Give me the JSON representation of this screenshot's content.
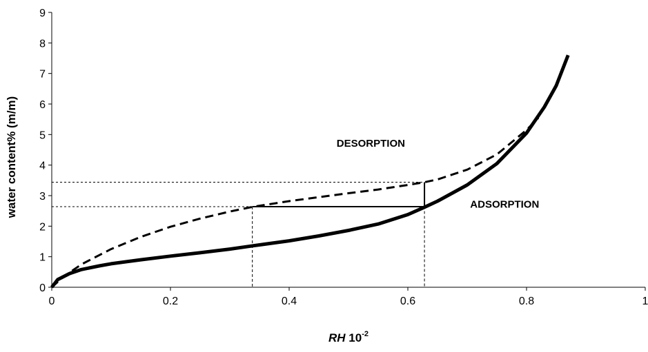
{
  "chart_data": {
    "type": "line",
    "xlabel_main": "RH",
    "xlabel_tail": " 10",
    "xlabel_sup": "-2",
    "ylabel": "water content% (m/m)",
    "xlim": [
      0,
      1
    ],
    "ylim": [
      0,
      9
    ],
    "x_ticks": [
      0,
      0.2,
      0.4,
      0.6,
      0.8,
      1
    ],
    "x_tick_labels": [
      "0",
      "0.2",
      "0.4",
      "0.6",
      "0.8",
      "1"
    ],
    "y_ticks": [
      0,
      1,
      2,
      3,
      4,
      5,
      6,
      7,
      8,
      9
    ],
    "y_tick_labels": [
      "0",
      "1",
      "2",
      "3",
      "4",
      "5",
      "6",
      "7",
      "8",
      "9"
    ],
    "grid": false,
    "series": [
      {
        "name": "ADSORPTION",
        "style": "solid-thick",
        "x": [
          0,
          0.01,
          0.03,
          0.05,
          0.08,
          0.1,
          0.15,
          0.2,
          0.25,
          0.3,
          0.34,
          0.4,
          0.45,
          0.5,
          0.55,
          0.6,
          0.628,
          0.65,
          0.7,
          0.75,
          0.8,
          0.83,
          0.85,
          0.87
        ],
        "y": [
          0,
          0.25,
          0.45,
          0.58,
          0.7,
          0.77,
          0.9,
          1.02,
          1.13,
          1.25,
          1.36,
          1.52,
          1.68,
          1.86,
          2.07,
          2.38,
          2.62,
          2.82,
          3.35,
          4.05,
          5.05,
          5.9,
          6.6,
          7.6
        ]
      },
      {
        "name": "DESORPTION",
        "style": "dashed",
        "x": [
          0,
          0.02,
          0.05,
          0.08,
          0.1,
          0.15,
          0.2,
          0.25,
          0.3,
          0.34,
          0.4,
          0.45,
          0.5,
          0.55,
          0.6,
          0.628,
          0.65,
          0.7,
          0.75,
          0.8,
          0.82
        ],
        "y": [
          0,
          0.35,
          0.75,
          1.05,
          1.25,
          1.65,
          1.98,
          2.25,
          2.48,
          2.64,
          2.82,
          2.95,
          3.08,
          3.2,
          3.35,
          3.44,
          3.53,
          3.85,
          4.35,
          5.15,
          5.55
        ]
      }
    ],
    "annotations": [
      {
        "text": "DESORPTION",
        "x": 0.48,
        "y": 4.6
      },
      {
        "text": "ADSORPTION",
        "x": 0.705,
        "y": 2.6
      }
    ],
    "reference_lines": {
      "dotted_vertical_x": [
        0.338,
        0.628
      ],
      "dotted_horizontal_y": [
        2.64,
        3.44
      ],
      "solid_horizontal": {
        "y": 2.64,
        "x_from": 0.338,
        "x_to": 0.628
      },
      "solid_vertical": {
        "x": 0.628,
        "y_from": 2.62,
        "y_to": 3.44
      }
    }
  }
}
